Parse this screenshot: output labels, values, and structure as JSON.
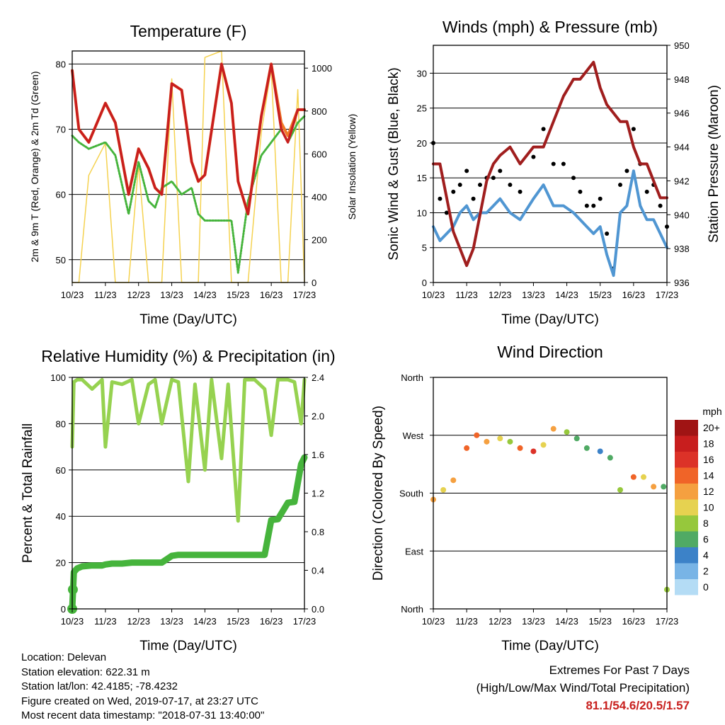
{
  "x_ticks": [
    "10/23",
    "11/23",
    "12/23",
    "13/23",
    "14/23",
    "15/23",
    "16/23",
    "17/23"
  ],
  "x_label": "Time (Day/UTC)",
  "colors": {
    "temp_red": "#c81e1e",
    "temp_orange": "#f07828",
    "td_green": "#46b43c",
    "solar_yellow": "#f5d250",
    "gust_black": "#000000",
    "wind_blue": "#5096d2",
    "pressure_maroon": "#a01e1e",
    "rh_light_green": "#96d250",
    "precip_green": "#46b43c",
    "extremes_red": "#c8201e"
  },
  "footer": {
    "location": "Location: Delevan",
    "elevation": "Station elevation: 622.31 m",
    "latlon": "Station lat/lon: 42.4185; -78.4232",
    "created": "Figure created on Wed, 2019-07-17, at 23:27 UTC",
    "recent": "Most recent data timestamp: \"2018-07-31 13:40:00\""
  },
  "extremes": {
    "title": "Extremes For Past 7 Days",
    "subtitle": "(High/Low/Max Wind/Total Precipitation)",
    "values": "81.1/54.6/20.5/1.57"
  },
  "chart_data": [
    {
      "type": "line",
      "title": "Temperature (F)",
      "xlabel": "Time (Day/UTC)",
      "ylabel": "2m & 9m T (Red, Orange) & 2m Td (Green)",
      "y2label": "Solar Insolation (Yellow)",
      "ylim": [
        46.5,
        82
      ],
      "yticks": [
        50,
        60,
        70,
        80
      ],
      "y2lim": [
        0,
        1080
      ],
      "y2ticks": [
        0,
        200,
        400,
        600,
        800,
        1000
      ],
      "x": [
        0,
        0.2,
        0.5,
        1,
        1.3,
        1.7,
        2,
        2.3,
        2.5,
        2.7,
        3,
        3.3,
        3.6,
        3.8,
        4,
        4.5,
        4.8,
        5,
        5.3,
        5.7,
        6,
        6.3,
        6.5,
        6.8,
        7
      ],
      "series": [
        {
          "name": "2m T",
          "values": [
            79,
            70,
            68,
            74,
            71,
            60,
            67,
            64,
            61,
            60,
            77,
            76,
            65,
            62,
            63,
            80,
            74,
            62,
            57,
            72,
            80,
            70,
            68,
            73,
            73
          ]
        },
        {
          "name": "9m T",
          "values": [
            79,
            70,
            68,
            74,
            71,
            60,
            67,
            64,
            61,
            60,
            77,
            76,
            65,
            62,
            63,
            80,
            74,
            62,
            57,
            72,
            80,
            71,
            69,
            73,
            73
          ]
        },
        {
          "name": "2m Td",
          "values": [
            69,
            68,
            67,
            68,
            66,
            57,
            65,
            59,
            58,
            61,
            62,
            60,
            61,
            57,
            56,
            56,
            56,
            48,
            59,
            66,
            68,
            70,
            68,
            71,
            72
          ]
        },
        {
          "name": "Solar Insolation",
          "values": [
            0,
            0,
            500,
            650,
            0,
            0,
            550,
            0,
            0,
            0,
            950,
            0,
            0,
            0,
            1050,
            1080,
            0,
            0,
            0,
            700,
            1000,
            0,
            0,
            900,
            0
          ]
        }
      ]
    },
    {
      "type": "line",
      "title": "Winds (mph) & Pressure (mb)",
      "xlabel": "Time (Day/UTC)",
      "ylabel": "Sonic Wind & Gust (Blue, Black)",
      "y2label": "Station Pressure (Maroon)",
      "ylim": [
        0,
        34
      ],
      "yticks": [
        0,
        5,
        10,
        15,
        20,
        25,
        30
      ],
      "y2lim": [
        936,
        950
      ],
      "y2ticks": [
        936,
        938,
        940,
        942,
        944,
        946,
        948,
        950
      ],
      "x": [
        0,
        0.2,
        0.4,
        0.6,
        0.8,
        1,
        1.2,
        1.4,
        1.6,
        1.8,
        2,
        2.3,
        2.6,
        3,
        3.3,
        3.6,
        3.9,
        4.2,
        4.4,
        4.6,
        4.8,
        5,
        5.2,
        5.4,
        5.6,
        5.8,
        6,
        6.2,
        6.4,
        6.6,
        6.8,
        7
      ],
      "series": [
        {
          "name": "Gust",
          "values": [
            20,
            12,
            10,
            13,
            14,
            16,
            12,
            14,
            15,
            15,
            16,
            14,
            13,
            18,
            22,
            17,
            17,
            15,
            13,
            11,
            11,
            12,
            7,
            2,
            14,
            16,
            22,
            17,
            13,
            14,
            11,
            8
          ]
        },
        {
          "name": "Wind",
          "values": [
            8,
            6,
            7,
            8,
            10,
            11,
            9,
            10,
            10,
            11,
            12,
            10,
            9,
            12,
            14,
            11,
            11,
            10,
            9,
            8,
            7,
            8,
            4,
            1,
            10,
            11,
            16,
            11,
            9,
            9,
            7,
            5
          ]
        },
        {
          "name": "Pressure",
          "values": [
            943,
            943,
            941,
            939,
            938,
            937,
            938,
            940,
            942,
            943,
            943.5,
            944,
            943,
            944,
            944,
            945.5,
            947,
            948,
            948,
            948.5,
            949,
            947.5,
            946.5,
            946,
            945.5,
            945.5,
            944,
            943,
            943,
            942,
            941,
            941
          ]
        }
      ]
    },
    {
      "type": "line",
      "title": "Relative Humidity (%) & Precipitation (in)",
      "xlabel": "Time (Day/UTC)",
      "ylabel": "Percent & Total Rainfall",
      "ylim": [
        0,
        100
      ],
      "yticks": [
        0,
        20,
        40,
        60,
        80,
        100
      ],
      "y2lim": [
        0,
        2.4
      ],
      "y2ticks": [
        0.0,
        0.4,
        0.8,
        1.2,
        1.6,
        2.0,
        2.4
      ],
      "x": [
        0,
        0.05,
        0.15,
        0.3,
        0.6,
        0.9,
        1,
        1.2,
        1.5,
        1.8,
        2,
        2.3,
        2.5,
        2.7,
        3,
        3.2,
        3.5,
        3.7,
        4,
        4.2,
        4.5,
        4.7,
        5,
        5.2,
        5.5,
        5.8,
        6,
        6.2,
        6.5,
        6.7,
        6.9,
        7
      ],
      "series": [
        {
          "name": "RH",
          "values": [
            70,
            98,
            99,
            99,
            95,
            99,
            70,
            98,
            97,
            99,
            80,
            97,
            99,
            80,
            99,
            98,
            55,
            97,
            60,
            99,
            65,
            97,
            38,
            99,
            99,
            95,
            75,
            99,
            99,
            98,
            80,
            99
          ]
        },
        {
          "name": "Precipitation",
          "values": [
            0,
            0.38,
            0.42,
            0.44,
            0.45,
            0.45,
            0.46,
            0.47,
            0.47,
            0.48,
            0.48,
            0.48,
            0.48,
            0.48,
            0.55,
            0.56,
            0.56,
            0.56,
            0.56,
            0.56,
            0.56,
            0.56,
            0.56,
            0.56,
            0.56,
            0.56,
            0.92,
            0.93,
            1.1,
            1.11,
            1.5,
            1.57
          ]
        }
      ]
    },
    {
      "type": "scatter",
      "title": "Wind Direction",
      "xlabel": "Time (Day/UTC)",
      "ylabel": "Direction (Colored By Speed)",
      "ylim": [
        0,
        360
      ],
      "yticks": [
        "North",
        "East",
        "South",
        "West",
        "North"
      ],
      "colorbar_title": "mph",
      "colorbar_labels": [
        "20+",
        "18",
        "16",
        "14",
        "12",
        "10",
        "8",
        "6",
        "4",
        "2",
        "0"
      ],
      "colorbar_colors": [
        "#a01414",
        "#c81e1e",
        "#dc3228",
        "#f06428",
        "#f5a040",
        "#e6d250",
        "#96c83c",
        "#50aa64",
        "#3c82c8",
        "#78b4e6",
        "#b4dcf5"
      ],
      "x": [
        0,
        0.3,
        0.6,
        1,
        1.3,
        1.6,
        2,
        2.3,
        2.6,
        3,
        3.3,
        3.6,
        4,
        4.3,
        4.6,
        5,
        5.3,
        5.6,
        6,
        6.3,
        6.6,
        6.9,
        7
      ],
      "values": [
        170,
        185,
        200,
        250,
        270,
        260,
        265,
        260,
        250,
        245,
        255,
        280,
        275,
        265,
        250,
        245,
        235,
        185,
        205,
        205,
        190,
        190,
        30
      ],
      "speeds": [
        12,
        10,
        12,
        14,
        14,
        12,
        10,
        8,
        14,
        16,
        10,
        12,
        8,
        6,
        6,
        4,
        6,
        8,
        14,
        10,
        12,
        6,
        8
      ]
    }
  ]
}
